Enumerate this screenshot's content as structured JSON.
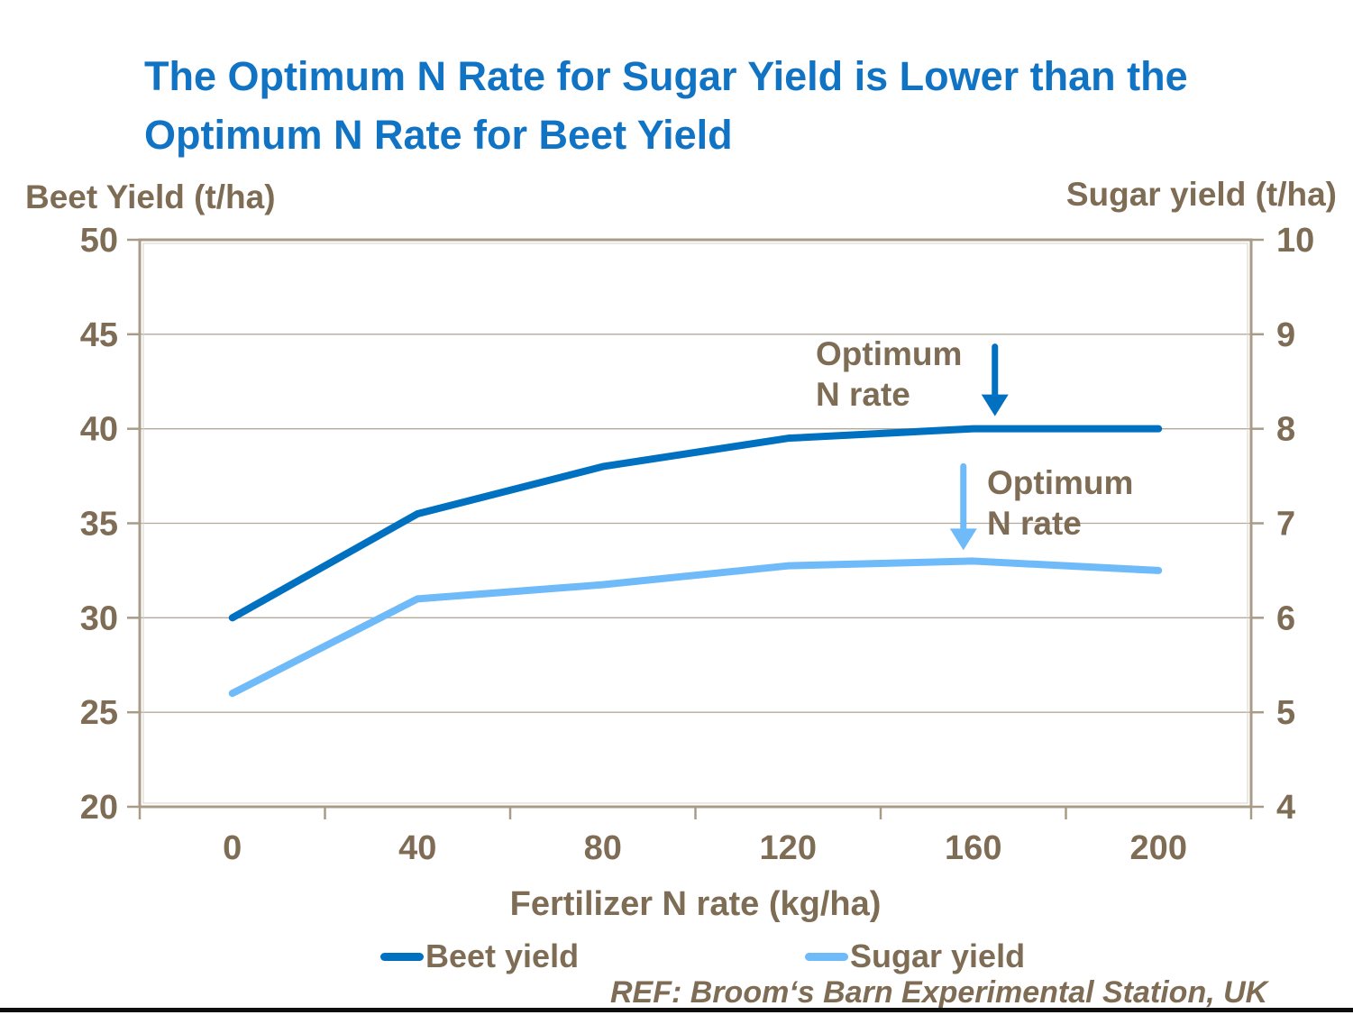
{
  "slide": {
    "title": "The Optimum N Rate for Sugar Yield is Lower than the Optimum N Rate for Beet Yield",
    "title_color": "#1173C4",
    "ref_text": "REF: Broom‘s Barn Experimental Station, UK"
  },
  "colors": {
    "text_brown": "#7E6C55",
    "gridline": "#B5AA99",
    "frame": "#A89C89",
    "beet_blue": "#0070C0",
    "sugar_blue": "#6FBAF8",
    "bottom_rule": "#0d0d0d"
  },
  "chart_data": {
    "type": "line",
    "x": [
      0,
      40,
      80,
      120,
      160,
      200
    ],
    "x_axis": {
      "title": "Fertilizer N rate (kg/ha)",
      "tick_labels": [
        "0",
        "40",
        "80",
        "120",
        "160",
        "200"
      ]
    },
    "left_axis": {
      "title": "Beet Yield (t/ha)",
      "min": 20,
      "max": 50,
      "ticks": [
        20,
        25,
        30,
        35,
        40,
        45,
        50
      ]
    },
    "right_axis": {
      "title": "Sugar yield (t/ha)",
      "min": 4,
      "max": 10,
      "ticks": [
        4,
        5,
        6,
        7,
        8,
        9,
        10
      ]
    },
    "grid": true,
    "legend_position": "bottom",
    "series": [
      {
        "name": "Beet yield",
        "axis": "left",
        "color": "#0070C0",
        "values": [
          30,
          35.5,
          38,
          39.5,
          40,
          40
        ]
      },
      {
        "name": "Sugar yield",
        "axis": "right",
        "color": "#6FBAF8",
        "values": [
          5.2,
          6.2,
          6.35,
          6.55,
          6.6,
          6.5
        ]
      }
    ],
    "annotations": [
      {
        "label": "Optimum N rate",
        "series": "Beet yield",
        "at_x": 160,
        "arrow_color": "#0070C0"
      },
      {
        "label": "Optimum N rate",
        "series": "Sugar yield",
        "at_x": 160,
        "arrow_color": "#6FBAF8"
      }
    ]
  }
}
